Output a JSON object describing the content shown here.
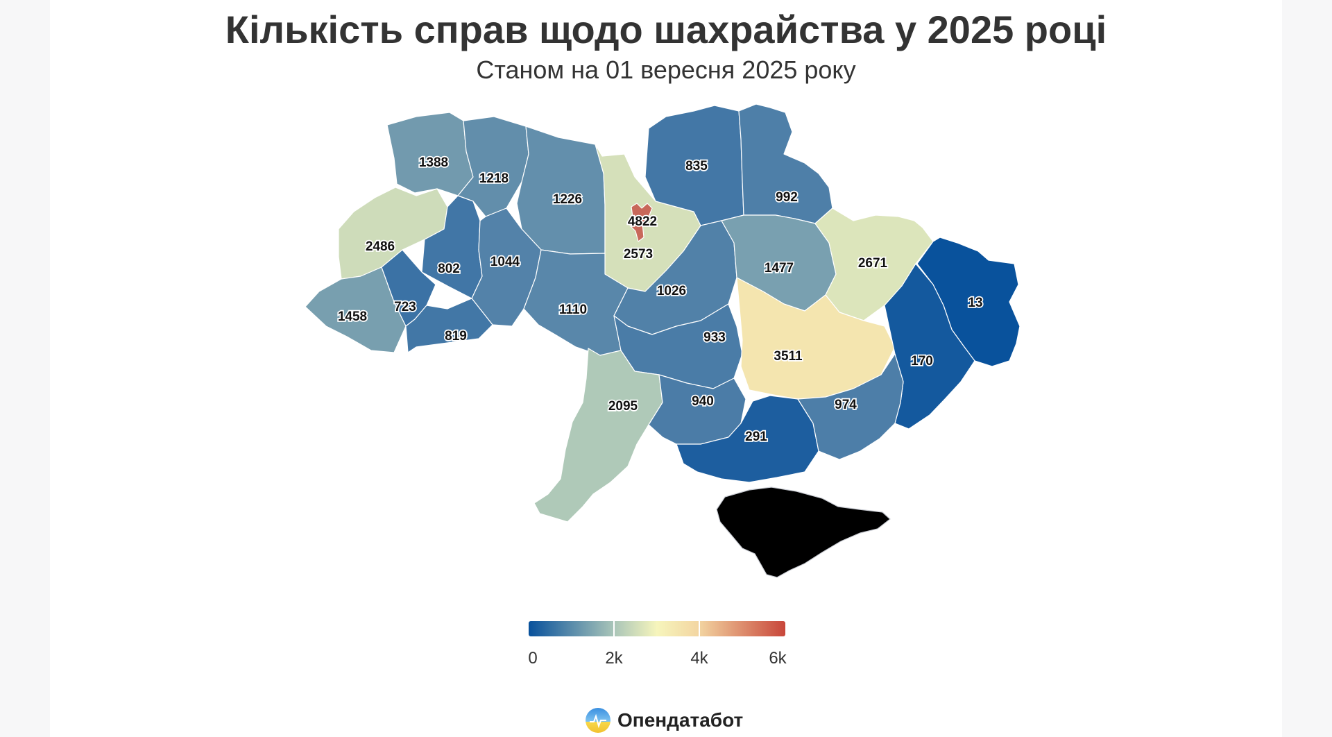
{
  "title": "Кількість справ щодо шахрайства у 2025 році",
  "subtitle": "Станом на 01 вересня 2025 року",
  "brand": {
    "name": "Опендатабот",
    "logo_icon": "opendatabot-logo-icon"
  },
  "colors": {
    "scale": [
      "#08519c",
      "#a8c4b8",
      "#f6f5bc",
      "#f3d6a2",
      "#c8463a"
    ],
    "crimea": "#f2f3f6",
    "kyiv_city": "#c8685a"
  },
  "legend": {
    "min": 0,
    "max": 6000,
    "ticks": [
      {
        "value": 0,
        "label": "0"
      },
      {
        "value": 2000,
        "label": "2k"
      },
      {
        "value": 4000,
        "label": "4k"
      },
      {
        "value": 6000,
        "label": "6k"
      }
    ]
  },
  "chart_data": {
    "type": "heatmap",
    "title": "Кількість справ щодо шахрайства у 2025 році",
    "subtitle": "Станом на 01 вересня 2025 року",
    "regions": [
      {
        "id": "volyn",
        "value": 1388
      },
      {
        "id": "rivne",
        "value": 1218
      },
      {
        "id": "zhytomyr",
        "value": 1226
      },
      {
        "id": "kyiv-oblast",
        "value": 2573
      },
      {
        "id": "kyiv-city",
        "value": 4822
      },
      {
        "id": "chernihiv",
        "value": 835
      },
      {
        "id": "sumy",
        "value": 992
      },
      {
        "id": "lviv",
        "value": 2486
      },
      {
        "id": "ternopil",
        "value": 802
      },
      {
        "id": "khmelnytskyi",
        "value": 1044
      },
      {
        "id": "vinnytsia",
        "value": 1110
      },
      {
        "id": "cherkasy",
        "value": 1026
      },
      {
        "id": "poltava",
        "value": 1477
      },
      {
        "id": "kharkiv",
        "value": 2671
      },
      {
        "id": "luhansk",
        "value": 13
      },
      {
        "id": "zakarpattia",
        "value": 1458
      },
      {
        "id": "ivano-frankivsk",
        "value": 723
      },
      {
        "id": "chernivtsi",
        "value": 819
      },
      {
        "id": "kirovohrad",
        "value": 933
      },
      {
        "id": "dnipro",
        "value": 3511
      },
      {
        "id": "donetsk",
        "value": 170
      },
      {
        "id": "odesa",
        "value": 2095
      },
      {
        "id": "mykolaiv",
        "value": 940
      },
      {
        "id": "kherson",
        "value": 291
      },
      {
        "id": "zaporizhzhia",
        "value": 974
      }
    ]
  }
}
